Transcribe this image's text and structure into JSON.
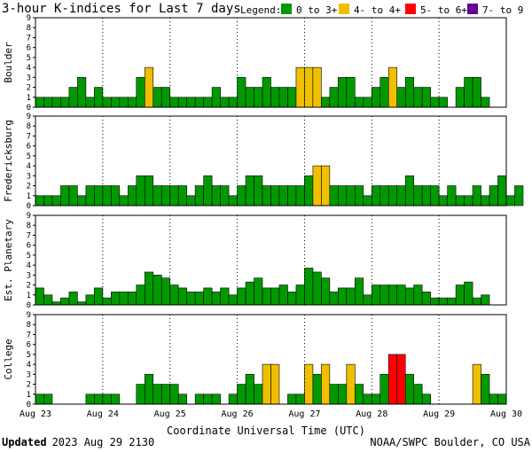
{
  "chart_data": {
    "type": "bar",
    "title": "3-hour K-indices for Last 7 days",
    "legend": {
      "label": "Legend:",
      "placement": "top-right",
      "items": [
        {
          "label": "0 to 3+",
          "color": "#009900"
        },
        {
          "label": "4- to 4+",
          "color": "#f0c000"
        },
        {
          "label": "5- to 6+",
          "color": "#ff0000"
        },
        {
          "label": "7- to 9",
          "color": "#660099"
        }
      ]
    },
    "xlabel": "Coordinate Universal Time (UTC)",
    "x_ticks": [
      "Aug 23",
      "Aug 24",
      "Aug 25",
      "Aug 26",
      "Aug 27",
      "Aug 28",
      "Aug 29",
      "Aug 30"
    ],
    "ylim": [
      0,
      9
    ],
    "y_ticks": [
      "0",
      "1",
      "2",
      "3",
      "4",
      "5",
      "6",
      "7",
      "8",
      "9"
    ],
    "grid": "dotted vertical at day boundaries",
    "bins_per_day": 8,
    "panels": [
      {
        "name": "Boulder",
        "values": [
          1,
          1,
          1,
          1,
          2,
          3,
          1,
          2,
          1,
          1,
          1,
          1,
          3,
          4,
          2,
          2,
          1,
          1,
          1,
          1,
          1,
          2,
          1,
          1,
          3,
          2,
          2,
          3,
          2,
          2,
          2,
          4,
          4,
          4,
          1,
          2,
          3,
          3,
          1,
          1,
          2,
          3,
          4,
          2,
          3,
          2,
          2,
          1,
          1,
          0,
          2,
          3,
          3,
          1,
          0
        ]
      },
      {
        "name": "Fredericksburg",
        "values": [
          1,
          1,
          1,
          2,
          2,
          1,
          2,
          2,
          2,
          2,
          1,
          2,
          3,
          3,
          2,
          2,
          2,
          2,
          1,
          2,
          3,
          2,
          2,
          1,
          2,
          3,
          3,
          2,
          2,
          2,
          2,
          2,
          3,
          4,
          4,
          2,
          2,
          2,
          2,
          1,
          2,
          2,
          2,
          2,
          3,
          2,
          2,
          2,
          1,
          2,
          1,
          1,
          2,
          1,
          2,
          3,
          1,
          2,
          0
        ]
      },
      {
        "name": "Est. Planetary",
        "values": [
          1.7,
          1,
          0.3,
          0.7,
          1.3,
          0.3,
          1,
          1.7,
          0.7,
          1.3,
          1.3,
          1.3,
          2,
          3.3,
          3,
          2.7,
          2,
          1.7,
          1.3,
          1.3,
          1.7,
          1.3,
          1.7,
          1,
          1.7,
          2.3,
          2.7,
          1.7,
          1.7,
          2,
          1.3,
          2,
          3.7,
          3.3,
          2.7,
          1.3,
          1.7,
          1.7,
          2.7,
          1,
          2,
          2,
          2,
          2,
          1.7,
          2,
          1.3,
          0.7,
          0.7,
          0.7,
          2,
          2.3,
          0.7,
          1
        ]
      },
      {
        "name": "College",
        "values": [
          1,
          1,
          0,
          0,
          0,
          0,
          1,
          1,
          1,
          1,
          0,
          0,
          2,
          3,
          2,
          2,
          2,
          1,
          0,
          1,
          1,
          1,
          0,
          1,
          2,
          3,
          2,
          4,
          4,
          0,
          1,
          1,
          4,
          3,
          4,
          2,
          2,
          4,
          2,
          1,
          1,
          3,
          5,
          5,
          3,
          2,
          1,
          0,
          0,
          0,
          0,
          0,
          4,
          3,
          1,
          1
        ]
      }
    ]
  },
  "footer": {
    "updated_label": "Updated",
    "updated_value": "2023 Aug 29 2130",
    "source": "NOAA/SWPC Boulder, CO USA"
  }
}
